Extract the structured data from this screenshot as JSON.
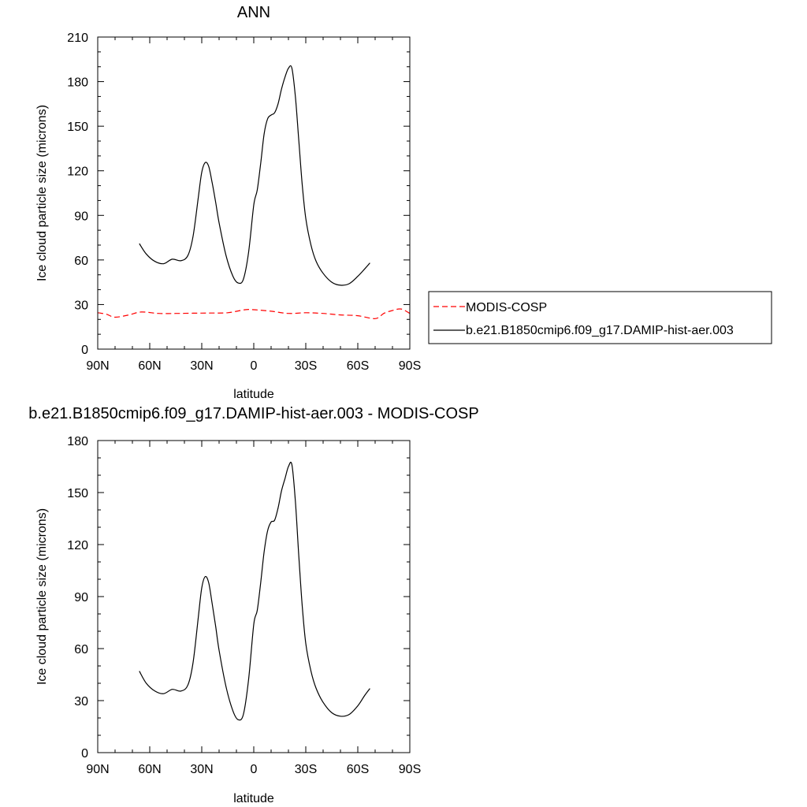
{
  "chart_data": [
    {
      "type": "line",
      "title": "ANN",
      "xlabel": "latitude",
      "ylabel": "Ice cloud particle size (microns)",
      "xlim": [
        -90,
        90
      ],
      "ylim": [
        0,
        210
      ],
      "xticks": [
        {
          "value": -90,
          "label": "90N"
        },
        {
          "value": -60,
          "label": "60N"
        },
        {
          "value": -30,
          "label": "30N"
        },
        {
          "value": 0,
          "label": "0"
        },
        {
          "value": 30,
          "label": "30S"
        },
        {
          "value": 60,
          "label": "60S"
        },
        {
          "value": 90,
          "label": "90S"
        }
      ],
      "yticks": [
        {
          "value": 0,
          "label": "0"
        },
        {
          "value": 30,
          "label": "30"
        },
        {
          "value": 60,
          "label": "60"
        },
        {
          "value": 90,
          "label": "90"
        },
        {
          "value": 120,
          "label": "120"
        },
        {
          "value": 150,
          "label": "150"
        },
        {
          "value": 180,
          "label": "180"
        },
        {
          "value": 210,
          "label": "210"
        }
      ],
      "legend_position": "right",
      "series": [
        {
          "name": "MODIS-COSP",
          "color": "#ff0000",
          "dash": "dashed",
          "x": [
            -90,
            -85,
            -80,
            -72,
            -65,
            -55,
            -45,
            -35,
            -25,
            -15,
            -5,
            0,
            10,
            20,
            30,
            40,
            50,
            60,
            70,
            75,
            80,
            85,
            90
          ],
          "y": [
            24.5,
            23.5,
            21.5,
            23.0,
            25.0,
            24.0,
            24.0,
            24.2,
            24.3,
            24.5,
            26.5,
            26.5,
            25.5,
            24.0,
            24.5,
            24.0,
            23.0,
            22.5,
            20.5,
            24.0,
            26.0,
            27.0,
            24.0
          ]
        },
        {
          "name": "b.e21.B1850cmip6.f09_g17.DAMIP-hist-aer.003",
          "color": "#000000",
          "dash": "solid",
          "x": [
            -66,
            -62,
            -57,
            -52,
            -47,
            -42,
            -38,
            -35,
            -32,
            -30,
            -28,
            -26,
            -24,
            -22,
            -20,
            -16,
            -12,
            -9,
            -6,
            -3,
            0,
            2,
            4,
            6,
            8,
            10,
            12,
            14,
            16,
            18,
            20,
            22,
            24,
            26,
            28,
            30,
            33,
            36,
            40,
            45,
            50,
            55,
            60,
            64,
            67
          ],
          "y": [
            71,
            64,
            59,
            57.5,
            60.5,
            59.5,
            63,
            76,
            102,
            119,
            125.5,
            123,
            112,
            99,
            85,
            63,
            49,
            44.5,
            47,
            65,
            97,
            107,
            125,
            145,
            155,
            157.5,
            159,
            165,
            175,
            183,
            189,
            189,
            170,
            140,
            110,
            88,
            70,
            59,
            51,
            45,
            43,
            44,
            49,
            54,
            58
          ]
        }
      ]
    },
    {
      "type": "line",
      "title": "b.e21.B1850cmip6.f09_g17.DAMIP-hist-aer.003 - MODIS-COSP",
      "xlabel": "latitude",
      "ylabel": "Ice cloud particle size (microns)",
      "xlim": [
        -90,
        90
      ],
      "ylim": [
        0,
        180
      ],
      "xticks": [
        {
          "value": -90,
          "label": "90N"
        },
        {
          "value": -60,
          "label": "60N"
        },
        {
          "value": -30,
          "label": "30N"
        },
        {
          "value": 0,
          "label": "0"
        },
        {
          "value": 30,
          "label": "30S"
        },
        {
          "value": 60,
          "label": "60S"
        },
        {
          "value": 90,
          "label": "90S"
        }
      ],
      "yticks": [
        {
          "value": 0,
          "label": "0"
        },
        {
          "value": 30,
          "label": "30"
        },
        {
          "value": 60,
          "label": "60"
        },
        {
          "value": 90,
          "label": "90"
        },
        {
          "value": 120,
          "label": "120"
        },
        {
          "value": 150,
          "label": "150"
        },
        {
          "value": 180,
          "label": "180"
        }
      ],
      "series": [
        {
          "color": "#000000",
          "dash": "solid",
          "x": [
            -66,
            -62,
            -57,
            -52,
            -47,
            -42,
            -38,
            -35,
            -32,
            -30,
            -28,
            -26,
            -24,
            -22,
            -20,
            -16,
            -12,
            -9,
            -6,
            -3,
            0,
            2,
            4,
            6,
            8,
            10,
            12,
            14,
            16,
            18,
            20,
            22,
            24,
            26,
            28,
            30,
            33,
            36,
            40,
            45,
            50,
            55,
            60,
            64,
            67
          ],
          "y": [
            47,
            40,
            35.5,
            34,
            36.5,
            35.5,
            39,
            52,
            78,
            95,
            101.5,
            98,
            86,
            73,
            59,
            38,
            24,
            19,
            22,
            42,
            74,
            82,
            98,
            116,
            128,
            133,
            134,
            141,
            151,
            158,
            165,
            166,
            145,
            113,
            84,
            63,
            47,
            37,
            29,
            23,
            21,
            22,
            27,
            33,
            37
          ]
        }
      ]
    }
  ]
}
